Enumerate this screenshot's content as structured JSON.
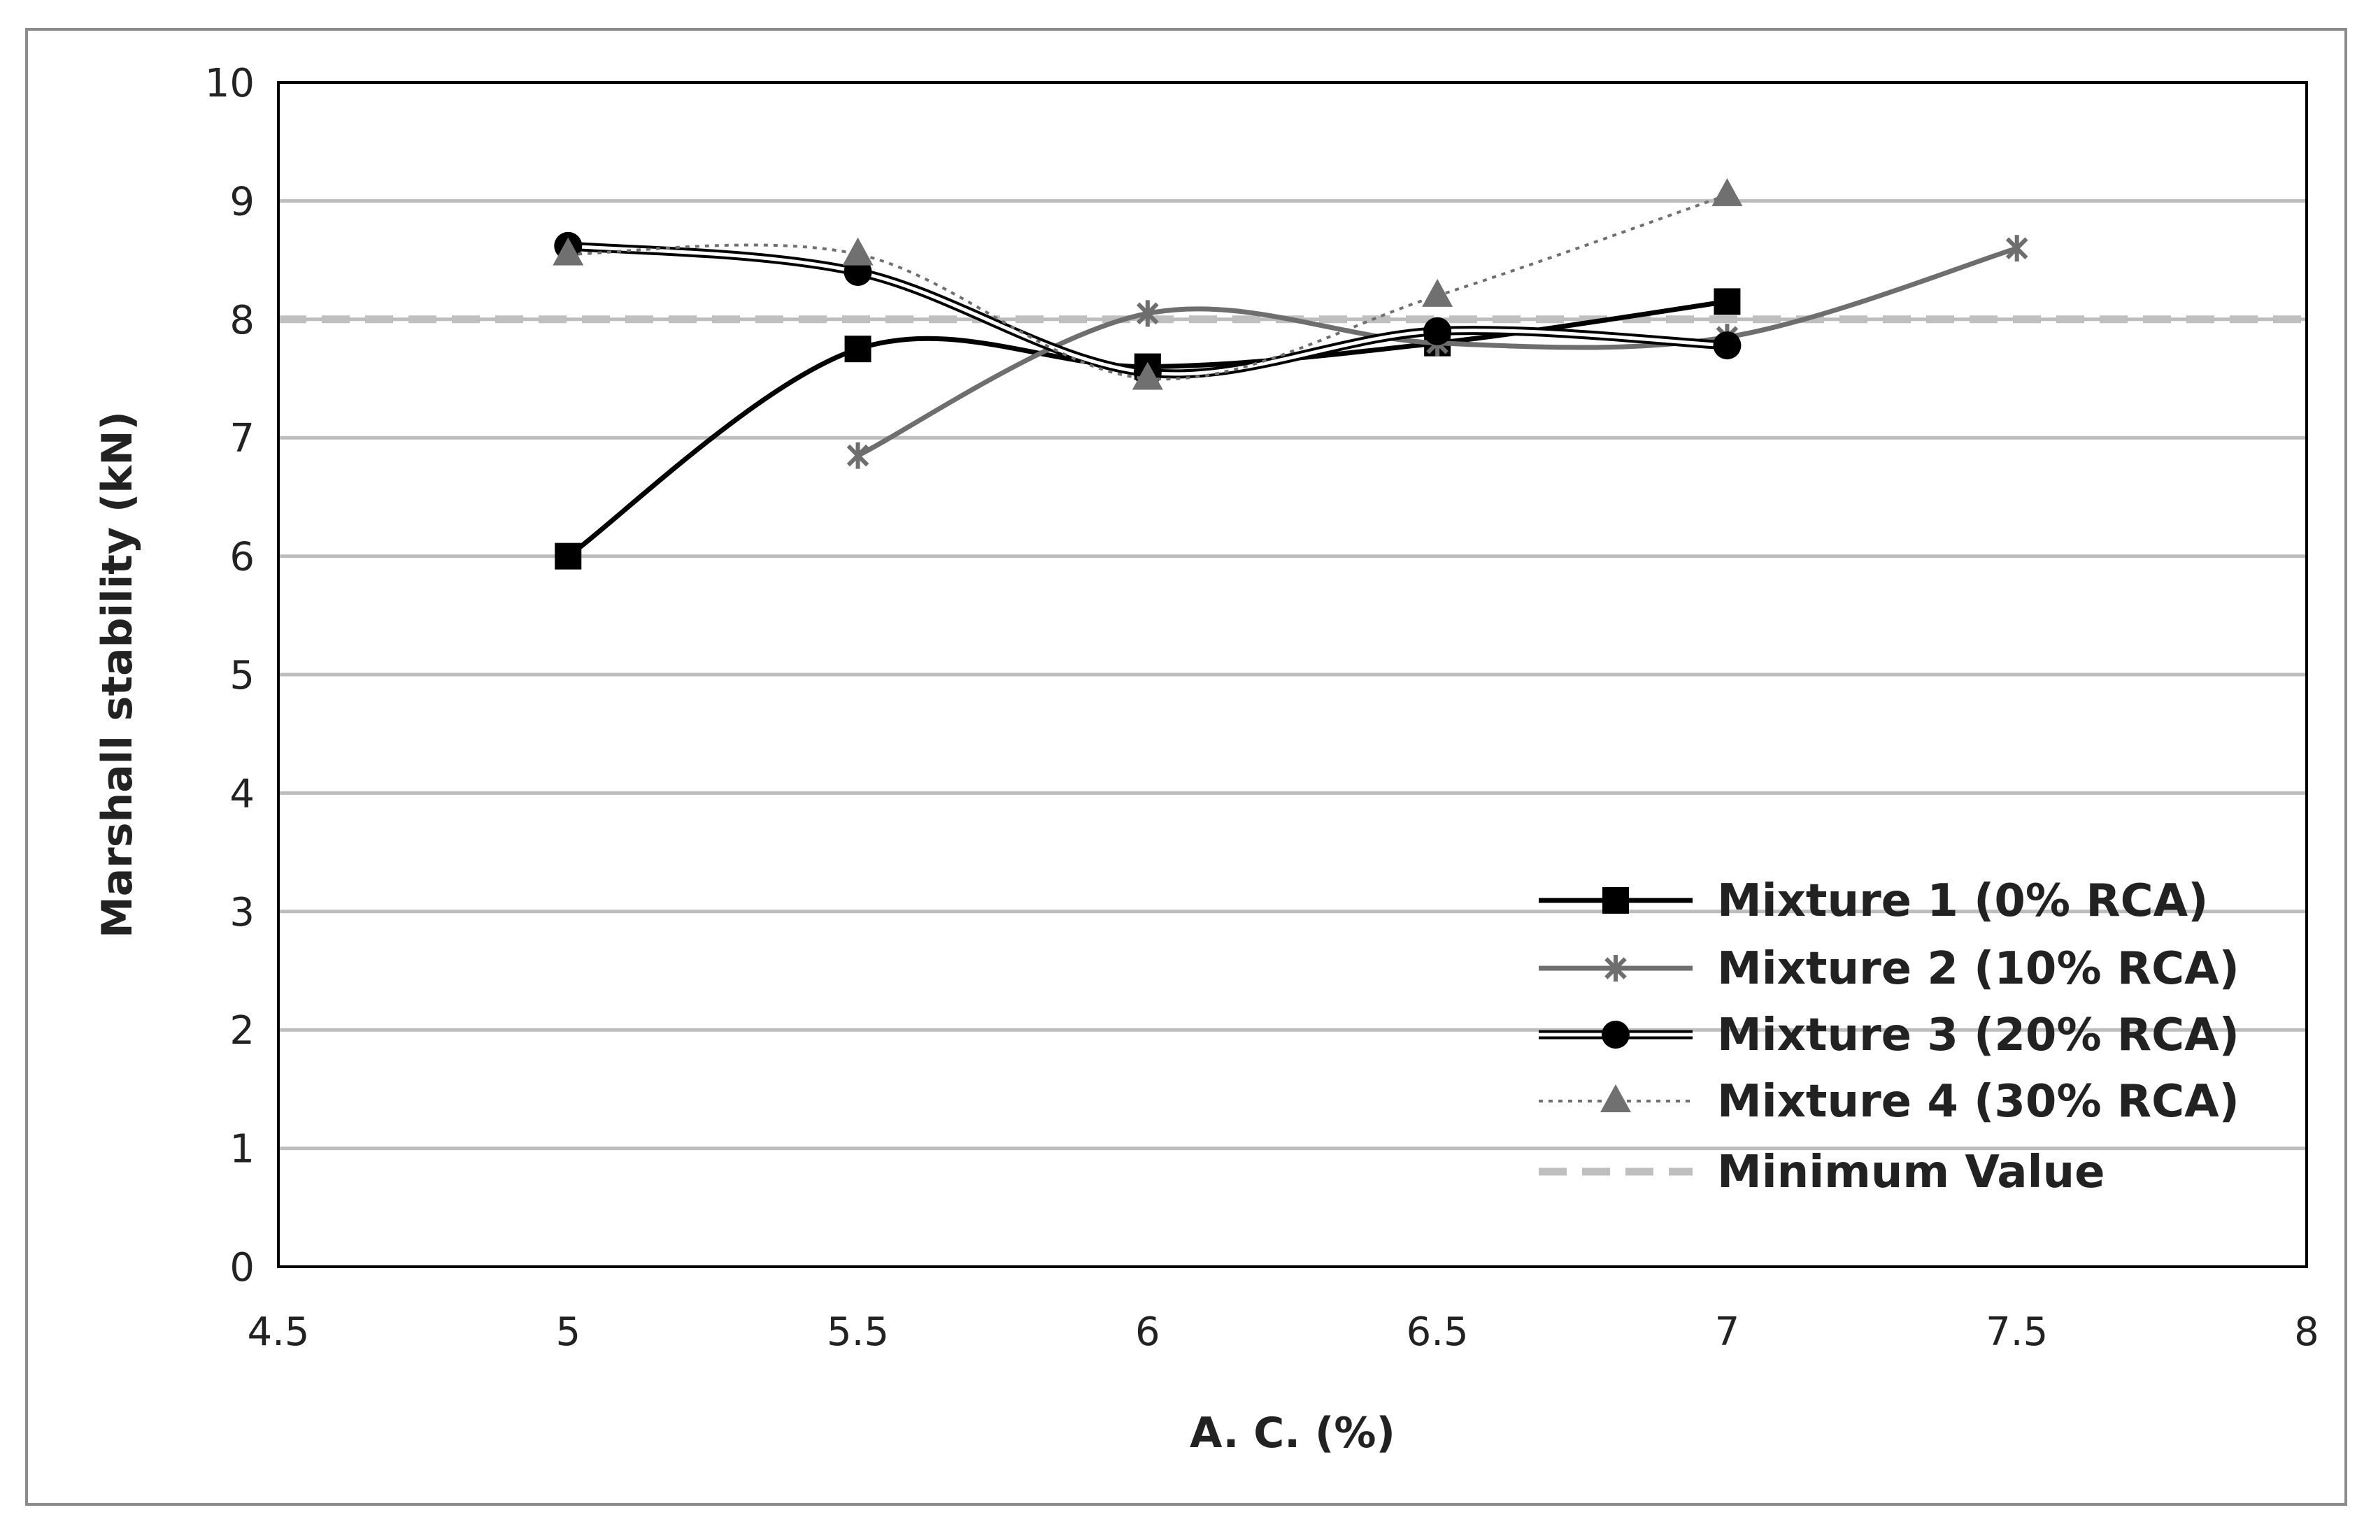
{
  "chart_data": {
    "type": "line",
    "title": "",
    "xlabel": "A. C. (%)",
    "ylabel": "Marshall stability (kN)",
    "xlim": [
      4.5,
      8
    ],
    "ylim": [
      0,
      10
    ],
    "xticks": [
      "4.5",
      "5",
      "5.5",
      "6",
      "6.5",
      "7",
      "7.5",
      "8"
    ],
    "yticks": [
      "0",
      "1",
      "2",
      "3",
      "4",
      "5",
      "6",
      "7",
      "8",
      "9",
      "10"
    ],
    "grid": "horizontal",
    "legend_position": "bottom-right",
    "series": [
      {
        "name": "Mixture 1 (0% RCA)",
        "marker": "square",
        "color": "#000000",
        "line": "solid",
        "x": [
          5,
          5.5,
          6,
          6.5,
          7
        ],
        "y": [
          6.0,
          7.75,
          7.6,
          7.8,
          8.15
        ]
      },
      {
        "name": "Mixture 2 (10% RCA)",
        "marker": "star",
        "color": "#6e6e6e",
        "line": "solid",
        "x": [
          5.5,
          6,
          6.5,
          7,
          7.5
        ],
        "y": [
          6.85,
          8.05,
          7.8,
          7.85,
          8.6
        ]
      },
      {
        "name": "Mixture 3 (20% RCA)",
        "marker": "circle",
        "color": "#000000",
        "line": "double",
        "x": [
          5,
          5.5,
          6,
          6.5,
          7
        ],
        "y": [
          8.62,
          8.4,
          7.55,
          7.9,
          7.78
        ]
      },
      {
        "name": "Mixture 4 (30% RCA)",
        "marker": "triangle",
        "color": "#707070",
        "line": "dotted",
        "x": [
          5,
          5.5,
          6,
          6.5,
          7
        ],
        "y": [
          8.55,
          8.55,
          7.5,
          8.2,
          9.05
        ]
      }
    ],
    "reference_line": {
      "name": "Minimum Value",
      "y": 8,
      "color": "#bfbfbf",
      "line": "dashed"
    }
  }
}
